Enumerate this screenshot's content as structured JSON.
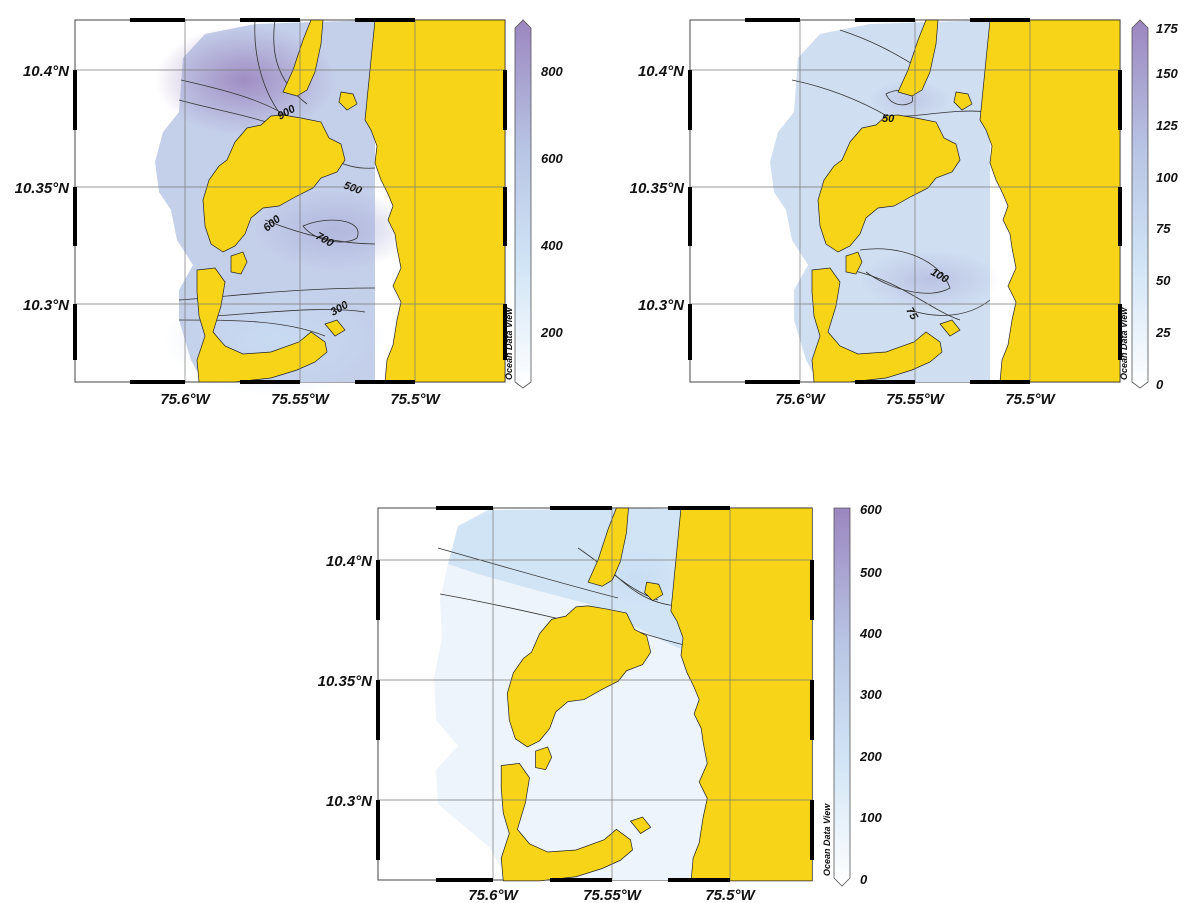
{
  "maps": [
    {
      "lon_labels": [
        "75.6°W",
        "75.55°W",
        "75.5°W"
      ],
      "lat_labels": [
        "10.4°N",
        "10.35°N",
        "10.3°N"
      ],
      "colorbar_ticks": [
        "800",
        "600",
        "400",
        "200"
      ],
      "colorbar_range": [
        100,
        900
      ],
      "contour_labels": [
        "900",
        "500",
        "600",
        "700",
        "300"
      ],
      "watermark": "Ocean Data View"
    },
    {
      "lon_labels": [
        "75.6°W",
        "75.55°W",
        "75.5°W"
      ],
      "lat_labels": [
        "10.4°N",
        "10.35°N",
        "10.3°N"
      ],
      "colorbar_ticks": [
        "175",
        "150",
        "125",
        "100",
        "75",
        "50",
        "25",
        "0"
      ],
      "colorbar_range": [
        0,
        175
      ],
      "contour_labels": [
        "50",
        "100",
        "75"
      ],
      "watermark": "Ocean Data View"
    },
    {
      "lon_labels": [
        "75.6°W",
        "75.55°W",
        "75.5°W"
      ],
      "lat_labels": [
        "10.4°N",
        "10.35°N",
        "10.3°N"
      ],
      "colorbar_ticks": [
        "600",
        "500",
        "400",
        "300",
        "200",
        "100",
        "0"
      ],
      "colorbar_range": [
        0,
        600
      ],
      "contour_labels": [],
      "watermark": "Ocean Data View"
    }
  ],
  "colors": {
    "land": "#f7d417",
    "scale_low": "#ffffff",
    "scale_mid": "#bfdaf2",
    "scale_high": "#9b86bf",
    "grid": "#777777"
  }
}
